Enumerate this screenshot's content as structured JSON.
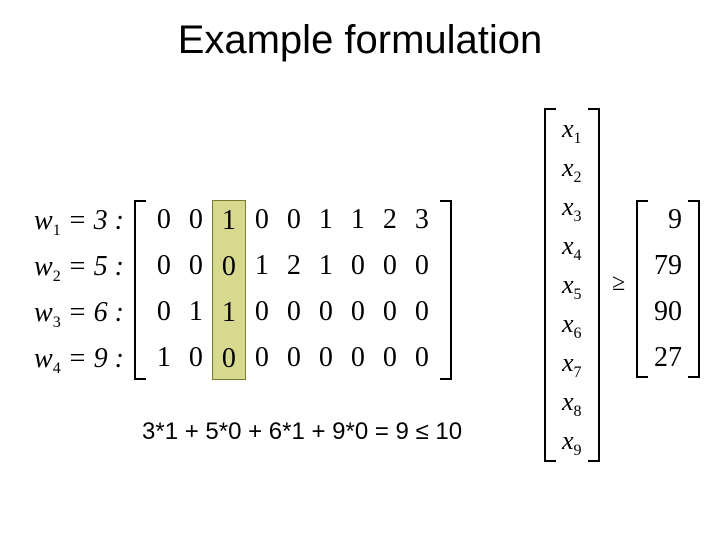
{
  "title": "Example formulation",
  "w": [
    {
      "label": "w",
      "sub": "1",
      "val": "3"
    },
    {
      "label": "w",
      "sub": "2",
      "val": "5"
    },
    {
      "label": "w",
      "sub": "3",
      "val": "6"
    },
    {
      "label": "w",
      "sub": "4",
      "val": "9"
    }
  ],
  "matrix": {
    "columns": [
      [
        "0",
        "0",
        "0",
        "1"
      ],
      [
        "0",
        "0",
        "1",
        "0"
      ],
      [
        "1",
        "0",
        "1",
        "0"
      ],
      [
        "0",
        "1",
        "0",
        "0"
      ],
      [
        "0",
        "2",
        "0",
        "0"
      ],
      [
        "1",
        "1",
        "0",
        "0"
      ],
      [
        "1",
        "0",
        "0",
        "0"
      ],
      [
        "2",
        "0",
        "0",
        "0"
      ],
      [
        "3",
        "0",
        "0",
        "0"
      ]
    ],
    "highlight_col_index": 2,
    "highlight_fill": "#d7d98f",
    "highlight_border": "#7a7a2a",
    "fontsize": 28,
    "row_gap": 14,
    "col_padding": 9
  },
  "x": [
    "1",
    "2",
    "3",
    "4",
    "5",
    "6",
    "7",
    "8",
    "9"
  ],
  "x_var": "x",
  "geq_symbol": "≥",
  "rhs": [
    "9",
    "79",
    "90",
    "27"
  ],
  "footnote": "3*1 + 5*0 + 6*1 + 9*0 = 9 ≤ 10",
  "colors": {
    "background": "#ffffff",
    "text": "#000000"
  },
  "fonts": {
    "title_family": "Arial",
    "title_size": 40,
    "math_family": "Times New Roman",
    "math_size": 28,
    "footnote_family": "Arial",
    "footnote_size": 24
  }
}
